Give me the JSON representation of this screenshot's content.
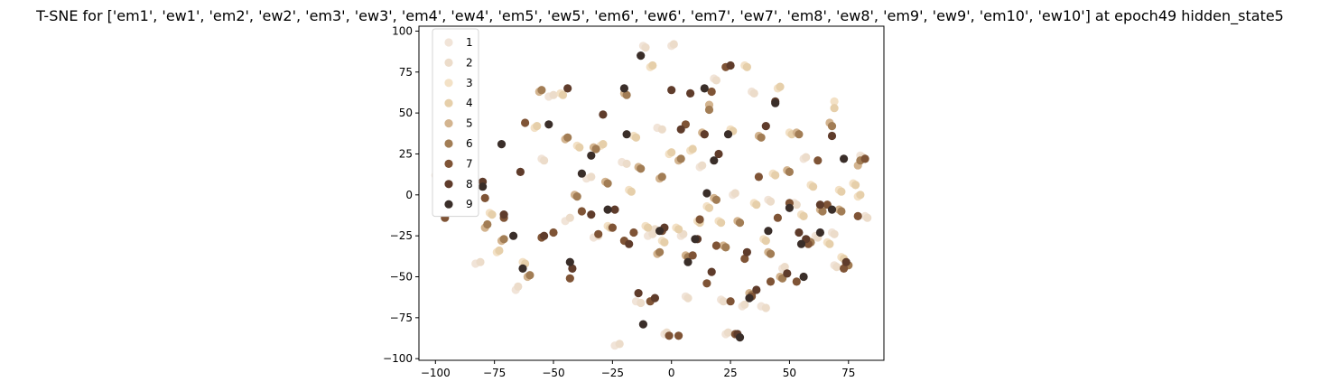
{
  "chart_data": {
    "type": "scatter",
    "title": "T-SNE for ['em1', 'ew1', 'em2', 'ew2', 'em3', 'ew3', 'em4', 'ew4', 'em5', 'ew5', 'em6', 'ew6', 'em7', 'ew7', 'em8', 'ew8', 'em9', 'ew9', 'em10', 'ew10'] at epoch49 hidden_state5",
    "xlabel": "",
    "ylabel": "",
    "xlim": [
      -107,
      90
    ],
    "ylim": [
      -101,
      103
    ],
    "xticks": [
      -100,
      -75,
      -50,
      -25,
      0,
      25,
      50,
      75
    ],
    "yticks": [
      -100,
      -75,
      -50,
      -25,
      0,
      25,
      50,
      75,
      100
    ],
    "grid": false,
    "legend_position": "top-left",
    "palette": [
      "#f1e4d8",
      "#ecdcca",
      "#f3e1c6",
      "#e6cfaa",
      "#d3b48f",
      "#a27d55",
      "#7f5436",
      "#5f3c2b",
      "#3a2e29"
    ],
    "series": [
      {
        "name": "1",
        "color": "#f1e4d8",
        "points": [
          [
            -100,
            12
          ],
          [
            -83,
            -42
          ],
          [
            -66,
            -58
          ],
          [
            -55,
            22
          ],
          [
            -52,
            60
          ],
          [
            -45,
            -16
          ],
          [
            -36,
            10
          ],
          [
            -33,
            -26
          ],
          [
            -24,
            -92
          ],
          [
            -21,
            20
          ],
          [
            -15,
            -65
          ],
          [
            -12,
            91
          ],
          [
            -10,
            -25
          ],
          [
            -8,
            -22
          ],
          [
            -6,
            41
          ],
          [
            -3,
            -85
          ],
          [
            0,
            91
          ],
          [
            4,
            -25
          ],
          [
            6,
            -62
          ],
          [
            12,
            17
          ],
          [
            18,
            71
          ],
          [
            21,
            -64
          ],
          [
            23,
            -85
          ],
          [
            26,
            0
          ],
          [
            30,
            -68
          ],
          [
            34,
            63
          ],
          [
            38,
            -68
          ],
          [
            41,
            -3
          ],
          [
            47,
            -45
          ],
          [
            52,
            -5
          ],
          [
            56,
            22
          ],
          [
            61,
            -25
          ],
          [
            68,
            -23
          ],
          [
            69,
            -43
          ],
          [
            80,
            24
          ],
          [
            82,
            -13
          ]
        ]
      },
      {
        "name": "2",
        "color": "#ecdcca",
        "points": [
          [
            -98,
            11
          ],
          [
            -81,
            -41
          ],
          [
            -65,
            -56
          ],
          [
            -54,
            21
          ],
          [
            -50,
            61
          ],
          [
            -43,
            -14
          ],
          [
            -34,
            11
          ],
          [
            -31,
            -25
          ],
          [
            -22,
            -91
          ],
          [
            -19,
            19
          ],
          [
            -13,
            -66
          ],
          [
            -11,
            90
          ],
          [
            -8,
            -24
          ],
          [
            -7,
            -21
          ],
          [
            -4,
            40
          ],
          [
            -2,
            -84
          ],
          [
            1,
            92
          ],
          [
            5,
            -24
          ],
          [
            7,
            -63
          ],
          [
            13,
            18
          ],
          [
            19,
            70
          ],
          [
            22,
            -65
          ],
          [
            24,
            -84
          ],
          [
            27,
            1
          ],
          [
            31,
            -67
          ],
          [
            35,
            62
          ],
          [
            40,
            -69
          ],
          [
            42,
            -4
          ],
          [
            48,
            -44
          ],
          [
            53,
            -6
          ],
          [
            57,
            23
          ],
          [
            62,
            -26
          ],
          [
            69,
            -24
          ],
          [
            70,
            -44
          ],
          [
            81,
            23
          ],
          [
            83,
            -14
          ]
        ]
      },
      {
        "name": "3",
        "color": "#f3e1c6",
        "points": [
          [
            -77,
            -11
          ],
          [
            -74,
            -35
          ],
          [
            -63,
            -41
          ],
          [
            -58,
            41
          ],
          [
            -47,
            62
          ],
          [
            -40,
            30
          ],
          [
            -30,
            30
          ],
          [
            -27,
            -19
          ],
          [
            -18,
            3
          ],
          [
            -16,
            36
          ],
          [
            -11,
            -19
          ],
          [
            -9,
            78
          ],
          [
            -4,
            -28
          ],
          [
            -1,
            25
          ],
          [
            2,
            -20
          ],
          [
            8,
            27
          ],
          [
            11,
            -16
          ],
          [
            15,
            -7
          ],
          [
            20,
            -16
          ],
          [
            25,
            40
          ],
          [
            31,
            79
          ],
          [
            35,
            -5
          ],
          [
            39,
            -27
          ],
          [
            43,
            13
          ],
          [
            45,
            65
          ],
          [
            50,
            38
          ],
          [
            55,
            -12
          ],
          [
            59,
            6
          ],
          [
            66,
            -29
          ],
          [
            71,
            3
          ],
          [
            72,
            -38
          ],
          [
            69,
            57
          ],
          [
            77,
            7
          ],
          [
            79,
            -1
          ]
        ]
      },
      {
        "name": "4",
        "color": "#e6cfaa",
        "points": [
          [
            -76,
            -12
          ],
          [
            -73,
            -34
          ],
          [
            -62,
            -42
          ],
          [
            -57,
            42
          ],
          [
            -46,
            61
          ],
          [
            -39,
            29
          ],
          [
            -29,
            31
          ],
          [
            -26,
            -20
          ],
          [
            -17,
            2
          ],
          [
            -15,
            35
          ],
          [
            -10,
            -20
          ],
          [
            -8,
            79
          ],
          [
            -3,
            -29
          ],
          [
            0,
            26
          ],
          [
            3,
            -21
          ],
          [
            9,
            28
          ],
          [
            12,
            -17
          ],
          [
            16,
            -8
          ],
          [
            21,
            -17
          ],
          [
            26,
            39
          ],
          [
            32,
            78
          ],
          [
            36,
            -6
          ],
          [
            40,
            -28
          ],
          [
            44,
            12
          ],
          [
            46,
            66
          ],
          [
            51,
            37
          ],
          [
            56,
            -13
          ],
          [
            60,
            5
          ],
          [
            67,
            -30
          ],
          [
            72,
            2
          ],
          [
            73,
            -39
          ],
          [
            69,
            53
          ],
          [
            78,
            6
          ],
          [
            80,
            0
          ]
        ]
      },
      {
        "name": "5",
        "color": "#d3b48f",
        "points": [
          [
            -79,
            -20
          ],
          [
            -72,
            -28
          ],
          [
            -61,
            -50
          ],
          [
            -56,
            63
          ],
          [
            -45,
            34
          ],
          [
            -41,
            0
          ],
          [
            -33,
            29
          ],
          [
            -28,
            8
          ],
          [
            -20,
            62
          ],
          [
            -14,
            17
          ],
          [
            -6,
            -36
          ],
          [
            -5,
            10
          ],
          [
            3,
            21
          ],
          [
            6,
            -37
          ],
          [
            13,
            38
          ],
          [
            16,
            55
          ],
          [
            18,
            -2
          ],
          [
            22,
            -31
          ],
          [
            28,
            -16
          ],
          [
            33,
            -60
          ],
          [
            37,
            36
          ],
          [
            41,
            -35
          ],
          [
            46,
            -50
          ],
          [
            49,
            15
          ],
          [
            53,
            38
          ],
          [
            58,
            -28
          ],
          [
            63,
            -9
          ],
          [
            67,
            44
          ],
          [
            71,
            -9
          ],
          [
            74,
            -42
          ],
          [
            79,
            18
          ]
        ]
      },
      {
        "name": "6",
        "color": "#a27d55",
        "points": [
          [
            -78,
            -18
          ],
          [
            -71,
            -27
          ],
          [
            -60,
            -49
          ],
          [
            -55,
            64
          ],
          [
            -44,
            35
          ],
          [
            -40,
            -1
          ],
          [
            -32,
            28
          ],
          [
            -27,
            7
          ],
          [
            -19,
            61
          ],
          [
            -13,
            16
          ],
          [
            -5,
            -35
          ],
          [
            -4,
            11
          ],
          [
            4,
            22
          ],
          [
            7,
            -38
          ],
          [
            14,
            37
          ],
          [
            16,
            52
          ],
          [
            19,
            -3
          ],
          [
            23,
            -32
          ],
          [
            29,
            -17
          ],
          [
            34,
            -61
          ],
          [
            38,
            35
          ],
          [
            42,
            -36
          ],
          [
            47,
            -51
          ],
          [
            50,
            14
          ],
          [
            54,
            37
          ],
          [
            59,
            -29
          ],
          [
            64,
            -10
          ],
          [
            68,
            42
          ],
          [
            72,
            -10
          ],
          [
            75,
            -43
          ],
          [
            80,
            21
          ]
        ]
      },
      {
        "name": "7",
        "color": "#7f5436",
        "points": [
          [
            -96,
            -14
          ],
          [
            -79,
            -2
          ],
          [
            -71,
            -14
          ],
          [
            -62,
            44
          ],
          [
            -55,
            -26
          ],
          [
            -50,
            -23
          ],
          [
            -43,
            -51
          ],
          [
            -38,
            -10
          ],
          [
            -31,
            -24
          ],
          [
            -25,
            -20
          ],
          [
            -20,
            -28
          ],
          [
            -16,
            -23
          ],
          [
            -9,
            -65
          ],
          [
            -4,
            -22
          ],
          [
            -1,
            -86
          ],
          [
            3,
            -86
          ],
          [
            6,
            43
          ],
          [
            9,
            -37
          ],
          [
            12,
            -15
          ],
          [
            15,
            -54
          ],
          [
            17,
            63
          ],
          [
            19,
            -31
          ],
          [
            23,
            78
          ],
          [
            25,
            -65
          ],
          [
            27,
            -85
          ],
          [
            31,
            -39
          ],
          [
            34,
            -62
          ],
          [
            37,
            11
          ],
          [
            42,
            -53
          ],
          [
            45,
            -14
          ],
          [
            50,
            -5
          ],
          [
            53,
            -53
          ],
          [
            58,
            -30
          ],
          [
            62,
            21
          ],
          [
            66,
            -6
          ],
          [
            73,
            -45
          ],
          [
            79,
            -13
          ],
          [
            82,
            22
          ]
        ]
      },
      {
        "name": "8",
        "color": "#5f3c2b",
        "points": [
          [
            -94,
            -9
          ],
          [
            -80,
            8
          ],
          [
            -71,
            -12
          ],
          [
            -64,
            14
          ],
          [
            -54,
            -25
          ],
          [
            -44,
            65
          ],
          [
            -42,
            -45
          ],
          [
            -34,
            -12
          ],
          [
            -29,
            49
          ],
          [
            -24,
            -9
          ],
          [
            -18,
            -30
          ],
          [
            -14,
            -60
          ],
          [
            -7,
            -63
          ],
          [
            -3,
            -20
          ],
          [
            0,
            64
          ],
          [
            4,
            40
          ],
          [
            8,
            62
          ],
          [
            11,
            -27
          ],
          [
            14,
            37
          ],
          [
            17,
            -47
          ],
          [
            20,
            25
          ],
          [
            25,
            79
          ],
          [
            28,
            -85
          ],
          [
            32,
            -35
          ],
          [
            36,
            -58
          ],
          [
            40,
            42
          ],
          [
            44,
            57
          ],
          [
            49,
            -48
          ],
          [
            54,
            -23
          ],
          [
            57,
            -27
          ],
          [
            63,
            -6
          ],
          [
            68,
            36
          ],
          [
            74,
            -41
          ]
        ]
      },
      {
        "name": "9",
        "color": "#3a2e29",
        "points": [
          [
            -98,
            11
          ],
          [
            -80,
            5
          ],
          [
            -72,
            31
          ],
          [
            -67,
            -25
          ],
          [
            -63,
            -45
          ],
          [
            -52,
            43
          ],
          [
            -43,
            -41
          ],
          [
            -38,
            13
          ],
          [
            -34,
            24
          ],
          [
            -27,
            -9
          ],
          [
            -20,
            65
          ],
          [
            -13,
            85
          ],
          [
            -12,
            -79
          ],
          [
            -5,
            -22
          ],
          [
            -19,
            37
          ],
          [
            7,
            -41
          ],
          [
            10,
            -27
          ],
          [
            14,
            65
          ],
          [
            15,
            1
          ],
          [
            18,
            21
          ],
          [
            24,
            37
          ],
          [
            29,
            -87
          ],
          [
            33,
            -63
          ],
          [
            41,
            -22
          ],
          [
            44,
            56
          ],
          [
            50,
            -8
          ],
          [
            55,
            -30
          ],
          [
            56,
            -50
          ],
          [
            63,
            -23
          ],
          [
            68,
            -9
          ],
          [
            73,
            22
          ]
        ]
      }
    ]
  }
}
